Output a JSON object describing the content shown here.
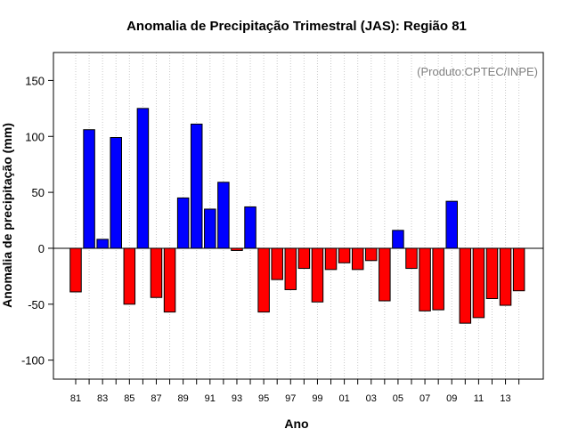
{
  "chart_data": {
    "type": "bar",
    "title": "Anomalia de Precipitação Trimestral (JAS): Região 81",
    "subtitle": "(Produto:CPTEC/INPE)",
    "xlabel": "Ano",
    "ylabel": "Anomalia de precipitação (mm)",
    "ylim": [
      -117,
      175
    ],
    "yticks": [
      -100,
      -50,
      0,
      50,
      100,
      150
    ],
    "grid": "vertical dotted",
    "categories": [
      "81",
      "82",
      "83",
      "84",
      "85",
      "86",
      "87",
      "88",
      "89",
      "90",
      "91",
      "92",
      "93",
      "94",
      "95",
      "96",
      "97",
      "98",
      "99",
      "00",
      "01",
      "02",
      "03",
      "04",
      "05",
      "06",
      "07",
      "08",
      "09",
      "10",
      "11",
      "12",
      "13",
      "14"
    ],
    "xtick_labels": [
      "81",
      "83",
      "85",
      "87",
      "89",
      "91",
      "93",
      "95",
      "97",
      "99",
      "01",
      "03",
      "05",
      "07",
      "09",
      "11",
      "13"
    ],
    "values": [
      -39,
      106,
      8,
      99,
      -50,
      125,
      -44,
      -57,
      45,
      111,
      35,
      59,
      -2,
      37,
      -57,
      -28,
      -37,
      -18,
      -48,
      -19,
      -13,
      -19,
      -11,
      -47,
      16,
      -18,
      -56,
      -55,
      42,
      -67,
      -62,
      -45,
      -51,
      -38
    ],
    "positive_color": "#0000ff",
    "negative_color": "#ff0000"
  }
}
